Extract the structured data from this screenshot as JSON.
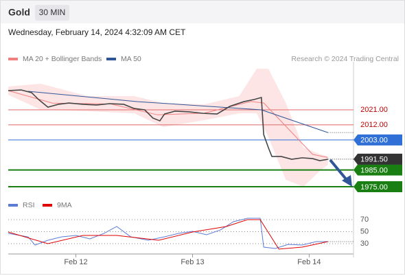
{
  "chart_data": {
    "type": "trading",
    "title": "Gold",
    "timeframe": "30 MIN",
    "subtitle": "Wednesday, February 14, 2024 4:32:09 AM CET",
    "credit": "Research © 2024 Trading Central",
    "xlim": [
      -0.58,
      2.38
    ],
    "xticks": [
      {
        "value": 0,
        "label": "Feb 12"
      },
      {
        "value": 1,
        "label": "Feb 13"
      },
      {
        "value": 2,
        "label": "Feb 14"
      }
    ],
    "ylim": [
      1972,
      2050
    ],
    "price": {
      "color": "#444444",
      "x": [
        -0.58,
        -0.47,
        -0.38,
        -0.32,
        -0.24,
        -0.15,
        -0.06,
        0.06,
        0.18,
        0.29,
        0.41,
        0.5,
        0.59,
        0.66,
        0.72,
        0.76,
        0.85,
        0.97,
        1.09,
        1.21,
        1.32,
        1.44,
        1.53,
        1.59,
        1.61,
        1.65,
        1.68,
        1.76,
        1.85,
        1.94,
        2.03,
        2.09,
        2.16
      ],
      "values": [
        2032.5,
        2032.9,
        2031.3,
        2027.2,
        2022.6,
        2024.3,
        2025.1,
        2024.3,
        2023.9,
        2024.7,
        2024.3,
        2021.8,
        2021.0,
        2016.1,
        2014.4,
        2018.5,
        2020.2,
        2019.8,
        2018.9,
        2018.5,
        2023.1,
        2025.9,
        2027.2,
        2028.4,
        2006.2,
        1998.4,
        1993.1,
        1993.1,
        1991.4,
        1992.3,
        1991.8,
        1990.6,
        1991.4
      ]
    },
    "series": [
      {
        "name": "MA 20 + Bollinger Bands",
        "color": "#f08080",
        "x": [
          -0.58,
          -0.2,
          0.3,
          0.7,
          1.1,
          1.5,
          1.61,
          2.03,
          2.16
        ],
        "values": [
          2032.5,
          2025,
          2024.5,
          2018,
          2019,
          2026,
          2025.1,
          1994.3,
          1992.5
        ]
      },
      {
        "name": "MA 50",
        "color": "#2f5597",
        "x": [
          -0.41,
          0.53,
          1.59,
          2.16
        ],
        "values": [
          2032.1,
          2025.9,
          2021,
          2007.4
        ]
      }
    ],
    "band": {
      "color": "#fde0e0",
      "x": [
        -0.58,
        -0.3,
        0.1,
        0.5,
        0.75,
        1.1,
        1.4,
        1.55,
        1.65,
        1.8,
        1.95,
        2.1,
        2.16
      ],
      "upper": [
        2035.0,
        2036.6,
        2029.2,
        2029.2,
        2025.1,
        2024.3,
        2029.2,
        2045.6,
        2045.6,
        2025.1,
        1998.4,
        1994.3,
        1993.1
      ],
      "lower": [
        2030.0,
        2021.0,
        2020.2,
        2018.9,
        2010.7,
        2014.8,
        2018.9,
        2018.9,
        2004.6,
        1979.1,
        1975.0,
        1984.9,
        1988.1
      ]
    },
    "levels": [
      {
        "value": 2021,
        "label": "2021.00",
        "color": "#e06666",
        "tag": false
      },
      {
        "value": 2012,
        "label": "2012.00",
        "color": "#e06666",
        "tag": false
      },
      {
        "value": 2003,
        "label": "2003.00",
        "color": "#2f6fd6",
        "tag": true
      },
      {
        "value": 1985,
        "label": "1985.00",
        "color": "#1a7f12",
        "tag": true
      },
      {
        "value": 1975,
        "label": "1975.00",
        "color": "#1a7f12",
        "tag": true
      }
    ],
    "last_price": {
      "value": 1991.5,
      "label": "1991.50",
      "color": "#333333"
    },
    "rsi": {
      "ylim": [
        20,
        80
      ],
      "yticks": [
        70,
        50,
        30
      ],
      "series": [
        {
          "name": "RSI",
          "color": "#5b7bd5",
          "x": [
            -0.58,
            -0.41,
            -0.35,
            -0.24,
            -0.12,
            0,
            0.12,
            0.24,
            0.35,
            0.47,
            0.62,
            0.76,
            0.88,
            1,
            1.12,
            1.24,
            1.35,
            1.47,
            1.58,
            1.61,
            1.71,
            1.82,
            1.94,
            2.06,
            2.16
          ],
          "values": [
            47.1,
            41.4,
            27.7,
            35.7,
            41.4,
            43.7,
            38,
            47.1,
            58.6,
            41.4,
            35.7,
            41.4,
            47.1,
            50.6,
            44.9,
            52.9,
            66.6,
            72.3,
            72.3,
            24.3,
            22,
            28.9,
            27.7,
            33.4,
            33.4
          ]
        },
        {
          "name": "9MA",
          "color": "#e00000",
          "x": [
            -0.58,
            -0.24,
            0.06,
            0.35,
            0.71,
            1.0,
            1.29,
            1.47,
            1.58,
            1.74,
            1.94,
            2.16
          ],
          "values": [
            49.4,
            30,
            43.7,
            43.7,
            35.7,
            49.4,
            58.6,
            70,
            70,
            21,
            24.3,
            33.4
          ]
        }
      ]
    }
  }
}
